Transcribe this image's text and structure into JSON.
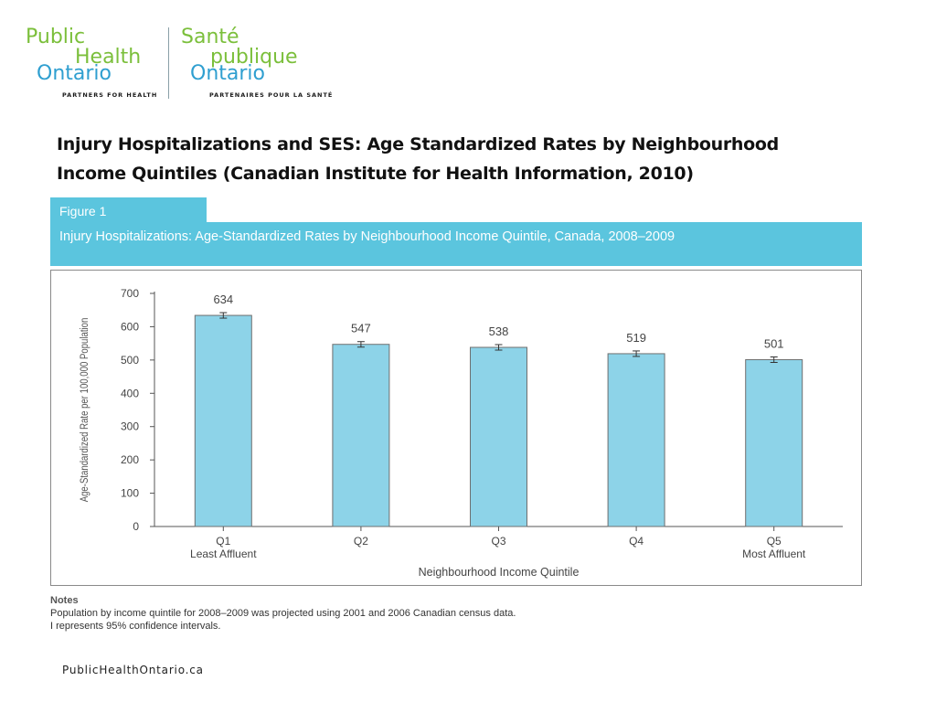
{
  "logo": {
    "en_public": "Public",
    "en_health": "Health",
    "en_ontario": "Ontario",
    "en_tagline": "PARTNERS FOR HEALTH",
    "fr_sante": "Santé",
    "fr_publique": "publique",
    "fr_ontario": "Ontario",
    "fr_tagline": "PARTENAIRES POUR LA SANTÉ"
  },
  "slide_title": "Injury Hospitalizations and SES: Age Standardized Rates by Neighbourhood Income Quintiles (Canadian Institute for Health Information, 2010)",
  "figure": {
    "label": "Figure 1",
    "title": "Injury Hospitalizations: Age-Standardized Rates by Neighbourhood Income Quintile, Canada, 2008–2009"
  },
  "chart_data": {
    "type": "bar",
    "categories": [
      "Q1",
      "Q2",
      "Q3",
      "Q4",
      "Q5"
    ],
    "category_sublabels": [
      "Least Affluent",
      "",
      "",
      "",
      "Most Affluent"
    ],
    "values": [
      634,
      547,
      538,
      519,
      501
    ],
    "error_bars": "95% confidence intervals",
    "xlabel": "Neighbourhood Income Quintile",
    "ylabel": "Age-Standardized Rate per 100,000 Population",
    "ylim": [
      0,
      700
    ],
    "yticks": [
      0,
      100,
      200,
      300,
      400,
      500,
      600,
      700
    ],
    "bar_color": "#8dd3e8",
    "bar_stroke": "#6f6f6f",
    "grid": false
  },
  "notes": {
    "heading": "Notes",
    "line1": "Population by income quintile for 2008–2009 was projected using 2001 and 2006 Canadian census data.",
    "line2": "I represents 95% confidence intervals."
  },
  "footer": "PublicHealthOntario.ca"
}
